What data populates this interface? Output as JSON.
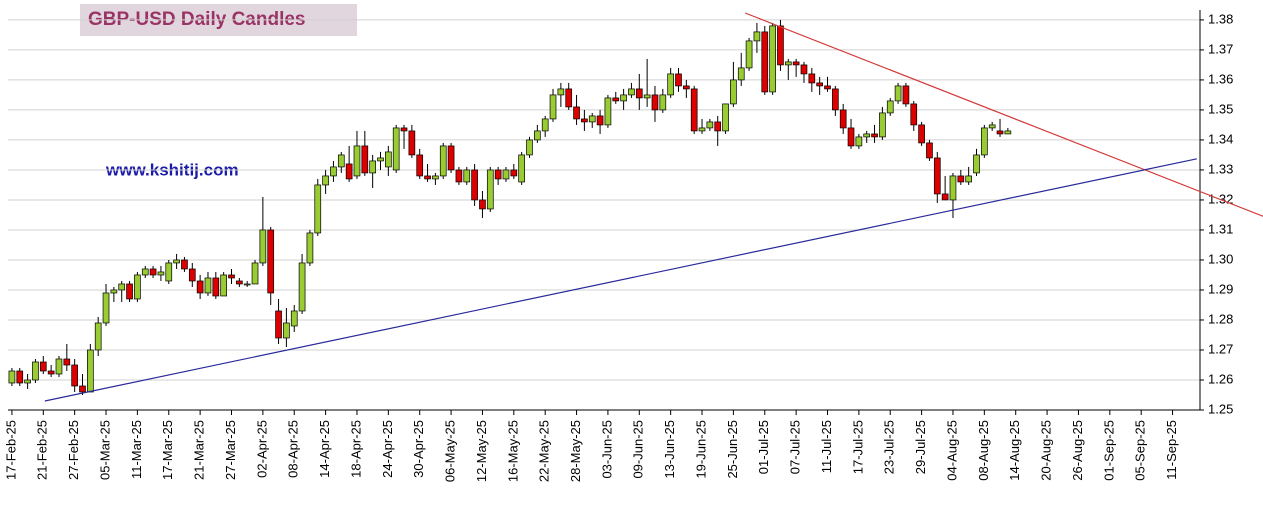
{
  "chart_data": {
    "type": "candlestick",
    "title": "GBP-USD Daily Candles",
    "annotation": "www.kshitij.com",
    "categories": [
      "17-Feb-25",
      null,
      null,
      null,
      "21-Feb-25",
      null,
      null,
      null,
      "27-Feb-25",
      null,
      null,
      null,
      "05-Mar-25",
      null,
      null,
      null,
      "11-Mar-25",
      null,
      null,
      null,
      "17-Mar-25",
      null,
      null,
      null,
      "21-Mar-25",
      null,
      null,
      null,
      "27-Mar-25",
      null,
      null,
      null,
      "02-Apr-25",
      null,
      null,
      null,
      "08-Apr-25",
      null,
      null,
      null,
      "14-Apr-25",
      null,
      null,
      null,
      "18-Apr-25",
      null,
      null,
      null,
      "24-Apr-25",
      null,
      null,
      null,
      "30-Apr-25",
      null,
      null,
      null,
      "06-May-25",
      null,
      null,
      null,
      "12-May-25",
      null,
      null,
      null,
      "16-May-25",
      null,
      null,
      null,
      "22-May-25",
      null,
      null,
      null,
      "28-May-25",
      null,
      null,
      null,
      "03-Jun-25",
      null,
      null,
      null,
      "09-Jun-25",
      null,
      null,
      null,
      "13-Jun-25",
      null,
      null,
      null,
      "19-Jun-25",
      null,
      null,
      null,
      "25-Jun-25",
      null,
      null,
      null,
      "01-Jul-25",
      null,
      null,
      null,
      "07-Jul-25",
      null,
      null,
      null,
      "11-Jul-25",
      null,
      null,
      null,
      "17-Jul-25",
      null,
      null,
      null,
      "23-Jul-25",
      null,
      null,
      null,
      "29-Jul-25",
      null,
      null,
      null,
      "04-Aug-25",
      null,
      null,
      null,
      "08-Aug-25",
      null,
      null,
      null,
      "14-Aug-25",
      null,
      null,
      null,
      "20-Aug-25",
      null,
      null,
      null,
      "26-Aug-25",
      null,
      null,
      null,
      "01-Sep-25",
      null,
      null,
      null,
      "05-Sep-25",
      null,
      null,
      null,
      "11-Sep-25",
      null,
      null,
      null
    ],
    "ohlc": [
      [
        1.259,
        1.264,
        1.258,
        1.263
      ],
      [
        1.263,
        1.264,
        1.258,
        1.259
      ],
      [
        1.259,
        1.262,
        1.257,
        1.26
      ],
      [
        1.26,
        1.267,
        1.259,
        1.266
      ],
      [
        1.266,
        1.268,
        1.262,
        1.263
      ],
      [
        1.263,
        1.265,
        1.261,
        1.262
      ],
      [
        1.262,
        1.268,
        1.261,
        1.267
      ],
      [
        1.267,
        1.272,
        1.263,
        1.265
      ],
      [
        1.265,
        1.267,
        1.256,
        1.258
      ],
      [
        1.258,
        1.262,
        1.255,
        1.256
      ],
      [
        1.256,
        1.272,
        1.256,
        1.27
      ],
      [
        1.27,
        1.281,
        1.268,
        1.279
      ],
      [
        1.279,
        1.292,
        1.278,
        1.289
      ],
      [
        1.289,
        1.291,
        1.286,
        1.29
      ],
      [
        1.29,
        1.293,
        1.286,
        1.292
      ],
      [
        1.292,
        1.293,
        1.286,
        1.287
      ],
      [
        1.287,
        1.296,
        1.286,
        1.295
      ],
      [
        1.295,
        1.298,
        1.294,
        1.297
      ],
      [
        1.297,
        1.298,
        1.294,
        1.295
      ],
      [
        1.295,
        1.298,
        1.293,
        1.296
      ],
      [
        1.293,
        1.3,
        1.292,
        1.299
      ],
      [
        1.299,
        1.302,
        1.297,
        1.3
      ],
      [
        1.3,
        1.301,
        1.296,
        1.297
      ],
      [
        1.297,
        1.299,
        1.291,
        1.293
      ],
      [
        1.293,
        1.295,
        1.287,
        1.289
      ],
      [
        1.289,
        1.296,
        1.288,
        1.294
      ],
      [
        1.294,
        1.296,
        1.287,
        1.288
      ],
      [
        1.288,
        1.296,
        1.288,
        1.295
      ],
      [
        1.295,
        1.297,
        1.292,
        1.294
      ],
      [
        1.293,
        1.294,
        1.291,
        1.292
      ],
      [
        1.292,
        1.293,
        1.291,
        1.292
      ],
      [
        1.292,
        1.3,
        1.292,
        1.299
      ],
      [
        1.299,
        1.321,
        1.298,
        1.31
      ],
      [
        1.31,
        1.311,
        1.285,
        1.289
      ],
      [
        1.283,
        1.287,
        1.272,
        1.274
      ],
      [
        1.274,
        1.284,
        1.271,
        1.279
      ],
      [
        1.278,
        1.285,
        1.276,
        1.283
      ],
      [
        1.283,
        1.302,
        1.282,
        1.299
      ],
      [
        1.299,
        1.31,
        1.298,
        1.309
      ],
      [
        1.309,
        1.327,
        1.308,
        1.325
      ],
      [
        1.325,
        1.33,
        1.322,
        1.328
      ],
      [
        1.328,
        1.333,
        1.326,
        1.331
      ],
      [
        1.331,
        1.336,
        1.329,
        1.335
      ],
      [
        1.332,
        1.338,
        1.326,
        1.327
      ],
      [
        1.328,
        1.343,
        1.327,
        1.338
      ],
      [
        1.338,
        1.343,
        1.328,
        1.329
      ],
      [
        1.329,
        1.335,
        1.324,
        1.333
      ],
      [
        1.333,
        1.336,
        1.33,
        1.334
      ],
      [
        1.331,
        1.338,
        1.328,
        1.336
      ],
      [
        1.33,
        1.345,
        1.329,
        1.344
      ],
      [
        1.344,
        1.345,
        1.337,
        1.343
      ],
      [
        1.343,
        1.345,
        1.334,
        1.335
      ],
      [
        1.335,
        1.337,
        1.327,
        1.328
      ],
      [
        1.328,
        1.332,
        1.326,
        1.327
      ],
      [
        1.327,
        1.329,
        1.325,
        1.328
      ],
      [
        1.328,
        1.339,
        1.327,
        1.338
      ],
      [
        1.338,
        1.339,
        1.329,
        1.33
      ],
      [
        1.33,
        1.331,
        1.325,
        1.326
      ],
      [
        1.326,
        1.331,
        1.325,
        1.33
      ],
      [
        1.33,
        1.332,
        1.318,
        1.32
      ],
      [
        1.32,
        1.323,
        1.314,
        1.317
      ],
      [
        1.317,
        1.331,
        1.316,
        1.33
      ],
      [
        1.33,
        1.331,
        1.325,
        1.327
      ],
      [
        1.327,
        1.331,
        1.326,
        1.33
      ],
      [
        1.33,
        1.332,
        1.327,
        1.328
      ],
      [
        1.326,
        1.336,
        1.325,
        1.335
      ],
      [
        1.335,
        1.341,
        1.334,
        1.34
      ],
      [
        1.34,
        1.345,
        1.339,
        1.343
      ],
      [
        1.343,
        1.348,
        1.341,
        1.347
      ],
      [
        1.347,
        1.357,
        1.346,
        1.355
      ],
      [
        1.355,
        1.359,
        1.351,
        1.357
      ],
      [
        1.357,
        1.359,
        1.35,
        1.351
      ],
      [
        1.351,
        1.355,
        1.345,
        1.347
      ],
      [
        1.347,
        1.35,
        1.343,
        1.346
      ],
      [
        1.346,
        1.349,
        1.344,
        1.348
      ],
      [
        1.348,
        1.35,
        1.342,
        1.345
      ],
      [
        1.345,
        1.355,
        1.344,
        1.354
      ],
      [
        1.354,
        1.356,
        1.352,
        1.353
      ],
      [
        1.353,
        1.357,
        1.35,
        1.355
      ],
      [
        1.355,
        1.359,
        1.354,
        1.357
      ],
      [
        1.357,
        1.362,
        1.35,
        1.354
      ],
      [
        1.354,
        1.367,
        1.351,
        1.355
      ],
      [
        1.355,
        1.358,
        1.346,
        1.35
      ],
      [
        1.35,
        1.357,
        1.349,
        1.355
      ],
      [
        1.355,
        1.364,
        1.354,
        1.362
      ],
      [
        1.362,
        1.364,
        1.356,
        1.358
      ],
      [
        1.358,
        1.36,
        1.354,
        1.357
      ],
      [
        1.357,
        1.358,
        1.342,
        1.343
      ],
      [
        1.343,
        1.347,
        1.342,
        1.344
      ],
      [
        1.344,
        1.347,
        1.343,
        1.346
      ],
      [
        1.346,
        1.348,
        1.338,
        1.343
      ],
      [
        1.343,
        1.352,
        1.342,
        1.352
      ],
      [
        1.352,
        1.366,
        1.351,
        1.36
      ],
      [
        1.36,
        1.369,
        1.358,
        1.364
      ],
      [
        1.364,
        1.374,
        1.363,
        1.373
      ],
      [
        1.373,
        1.379,
        1.369,
        1.376
      ],
      [
        1.376,
        1.378,
        1.355,
        1.356
      ],
      [
        1.356,
        1.379,
        1.355,
        1.378
      ],
      [
        1.378,
        1.38,
        1.363,
        1.365
      ],
      [
        1.365,
        1.367,
        1.36,
        1.366
      ],
      [
        1.366,
        1.367,
        1.361,
        1.365
      ],
      [
        1.365,
        1.366,
        1.359,
        1.362
      ],
      [
        1.362,
        1.364,
        1.356,
        1.359
      ],
      [
        1.359,
        1.361,
        1.355,
        1.358
      ],
      [
        1.358,
        1.361,
        1.356,
        1.357
      ],
      [
        1.357,
        1.358,
        1.348,
        1.35
      ],
      [
        1.35,
        1.352,
        1.342,
        1.344
      ],
      [
        1.344,
        1.347,
        1.337,
        1.338
      ],
      [
        1.338,
        1.342,
        1.337,
        1.341
      ],
      [
        1.341,
        1.343,
        1.339,
        1.342
      ],
      [
        1.342,
        1.345,
        1.339,
        1.341
      ],
      [
        1.341,
        1.351,
        1.34,
        1.349
      ],
      [
        1.349,
        1.354,
        1.348,
        1.353
      ],
      [
        1.353,
        1.359,
        1.352,
        1.358
      ],
      [
        1.358,
        1.359,
        1.351,
        1.352
      ],
      [
        1.352,
        1.353,
        1.343,
        1.345
      ],
      [
        1.345,
        1.346,
        1.338,
        1.339
      ],
      [
        1.339,
        1.34,
        1.333,
        1.334
      ],
      [
        1.334,
        1.336,
        1.319,
        1.322
      ],
      [
        1.322,
        1.328,
        1.32,
        1.32
      ],
      [
        1.32,
        1.329,
        1.314,
        1.328
      ],
      [
        1.328,
        1.33,
        1.325,
        1.326
      ],
      [
        1.326,
        1.331,
        1.325,
        1.328
      ],
      [
        1.329,
        1.337,
        1.328,
        1.335
      ],
      [
        1.335,
        1.345,
        1.334,
        1.344
      ],
      [
        1.344,
        1.346,
        1.343,
        1.345
      ],
      [
        1.343,
        1.347,
        1.341,
        1.342
      ],
      [
        1.342,
        1.344,
        1.342,
        1.343
      ]
    ],
    "up_color": "#99cc33",
    "down_color": "#dd0000",
    "trendlines": [
      {
        "color": "#d43c3c",
        "x": [
          93.5,
          159.8
        ],
        "y": [
          1.3823,
          1.3143
        ]
      },
      {
        "color": "#2a2a9a",
        "x": [
          4.2,
          151.1
        ],
        "y": [
          1.253,
          1.3337
        ]
      }
    ],
    "ylim": [
      1.25,
      1.3833
    ],
    "yticks": [
      1.25,
      1.26,
      1.27,
      1.28,
      1.29,
      {
        "value": 1.3,
        "label": "1.30"
      },
      1.31,
      1.32,
      1.33,
      1.34,
      1.35,
      1.36,
      1.37,
      1.38
    ],
    "grid": true
  }
}
